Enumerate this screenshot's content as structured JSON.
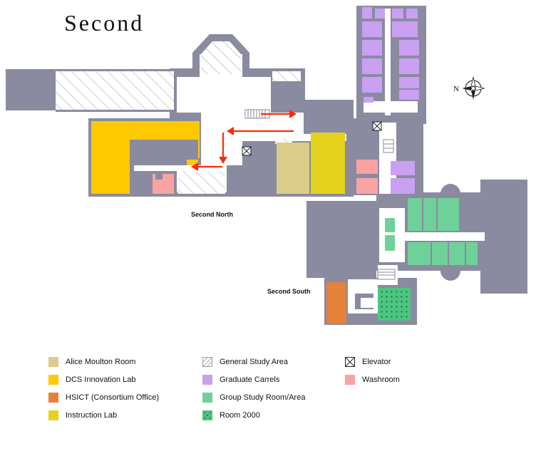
{
  "title": "Second",
  "labels": {
    "north": "Second North",
    "south": "Second South"
  },
  "compass": {
    "direction": "N",
    "icon": "compass-rose-icon"
  },
  "colors": {
    "building": "#8a8aa0",
    "alice_moulton_room": "#dccc8a",
    "dcs_innovation_lab": "#ffc900",
    "hsict": "#e4823a",
    "instruction_lab": "#e5d21c",
    "graduate_carrels": "#c9a0f2",
    "group_study": "#6fd19a",
    "room_2000": "#4cc580",
    "washroom": "#f9a3a3",
    "route_arrow": "#ff2a00"
  },
  "legend": [
    {
      "label": "Alice Moulton Room",
      "swatch": "alice_moulton_room"
    },
    {
      "label": "DCS Innovation Lab",
      "swatch": "dcs_innovation_lab"
    },
    {
      "label": "HSICT (Consortium Office)",
      "swatch": "hsict"
    },
    {
      "label": "Instruction Lab",
      "swatch": "instruction_lab"
    },
    {
      "label": "General Study Area",
      "swatch": "general_study"
    },
    {
      "label": "Graduate Carrels",
      "swatch": "graduate_carrels"
    },
    {
      "label": "Group Study Room/Area",
      "swatch": "group_study"
    },
    {
      "label": "Room 2000",
      "swatch": "room_2000"
    },
    {
      "label": "Elevator",
      "swatch": "elevator"
    },
    {
      "label": "Washroom",
      "swatch": "washroom"
    }
  ]
}
